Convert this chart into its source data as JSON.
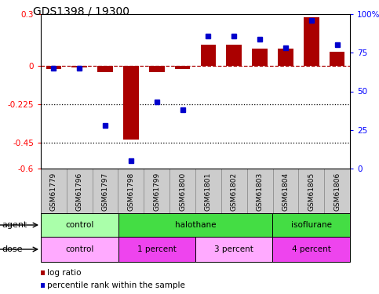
{
  "title": "GDS1398 / 19300",
  "samples": [
    "GSM61779",
    "GSM61796",
    "GSM61797",
    "GSM61798",
    "GSM61799",
    "GSM61800",
    "GSM61801",
    "GSM61802",
    "GSM61803",
    "GSM61804",
    "GSM61805",
    "GSM61806"
  ],
  "log_ratio": [
    -0.02,
    -0.01,
    -0.04,
    -0.43,
    -0.04,
    -0.02,
    0.12,
    0.12,
    0.1,
    0.1,
    0.28,
    0.08
  ],
  "pct_rank": [
    65,
    65,
    28,
    5,
    43,
    38,
    86,
    86,
    84,
    78,
    96,
    80
  ],
  "ylim_left": [
    -0.6,
    0.3
  ],
  "ylim_right": [
    0,
    100
  ],
  "yticks_left": [
    -0.6,
    -0.45,
    -0.225,
    0,
    0.3
  ],
  "ytick_labels_left": [
    "-0.6",
    "-0.45",
    "-0.225",
    "0",
    "0.3"
  ],
  "yticks_right": [
    0,
    25,
    50,
    75,
    100
  ],
  "ytick_labels_right": [
    "0",
    "25",
    "50",
    "75",
    "100%"
  ],
  "dotted_lines": [
    -0.225,
    -0.45
  ],
  "bar_color": "#aa0000",
  "dot_color": "#0000cc",
  "agent_groups": [
    {
      "label": "control",
      "start": 0,
      "end": 3,
      "color": "#aaffaa"
    },
    {
      "label": "halothane",
      "start": 3,
      "end": 9,
      "color": "#44dd44"
    },
    {
      "label": "isoflurane",
      "start": 9,
      "end": 12,
      "color": "#44dd44"
    }
  ],
  "dose_groups": [
    {
      "label": "control",
      "start": 0,
      "end": 3,
      "color": "#ffaaff"
    },
    {
      "label": "1 percent",
      "start": 3,
      "end": 6,
      "color": "#ee44ee"
    },
    {
      "label": "3 percent",
      "start": 6,
      "end": 9,
      "color": "#ffaaff"
    },
    {
      "label": "4 percent",
      "start": 9,
      "end": 12,
      "color": "#ee44ee"
    }
  ],
  "legend_items": [
    {
      "label": "log ratio",
      "color": "#aa0000"
    },
    {
      "label": "percentile rank within the sample",
      "color": "#0000cc"
    }
  ],
  "agent_label": "agent",
  "dose_label": "dose",
  "label_bg": "#cccccc"
}
